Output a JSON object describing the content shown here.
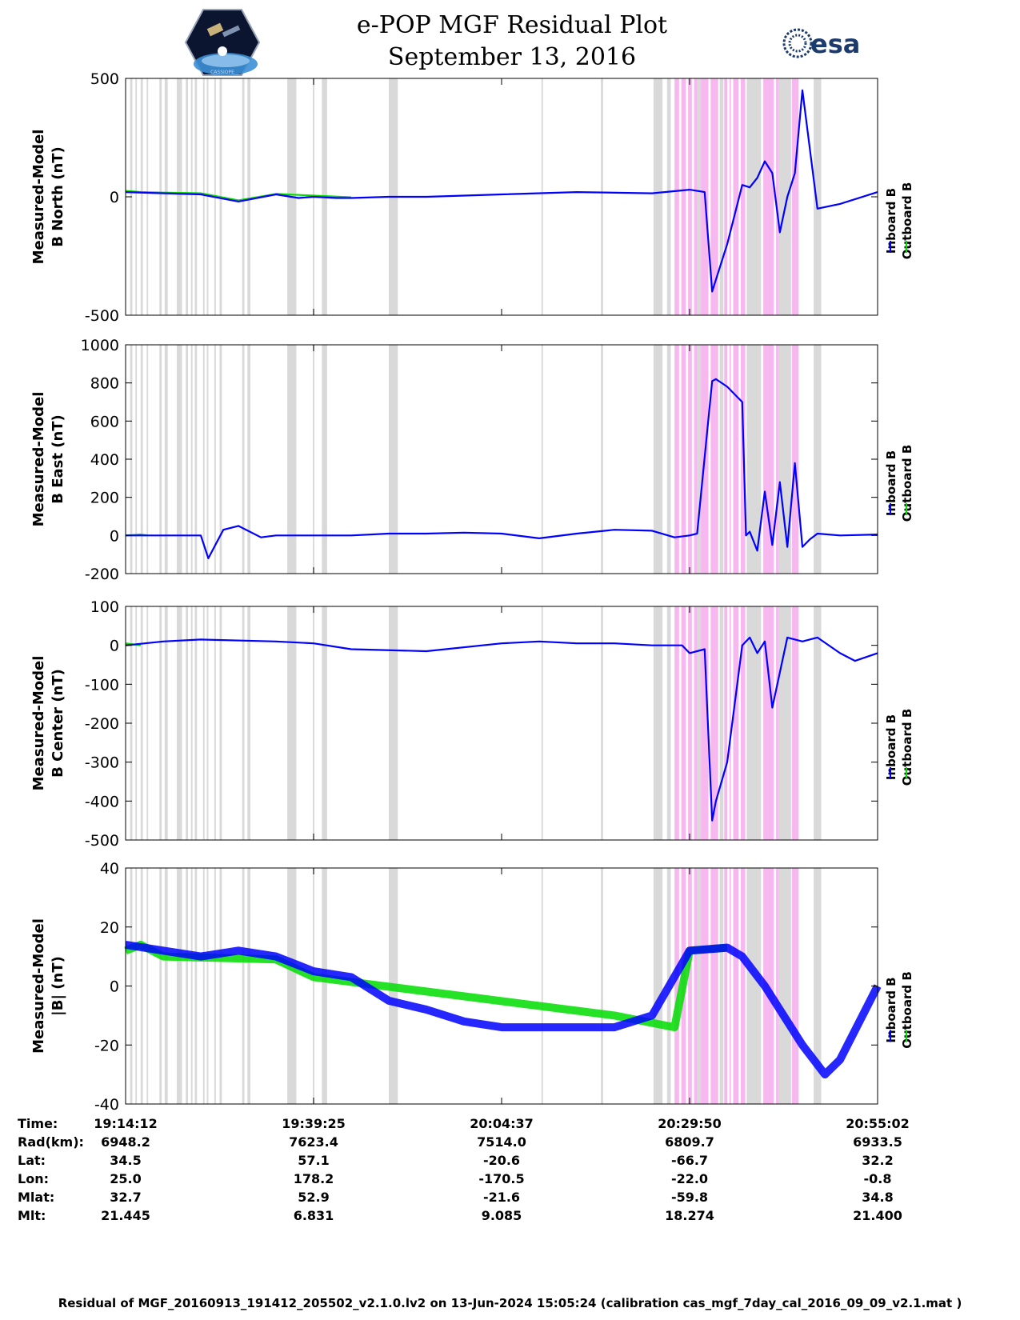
{
  "header": {
    "title": "e-POP MGF Residual Plot",
    "subtitle": "September 13, 2016",
    "logo_left_text": "CASSIOPE",
    "logo_right_text": "esa"
  },
  "colors": {
    "inboard": "#0000ff",
    "outboard": "#00dd00",
    "gray_band": "#d9d9d9",
    "pink_band": "#f7b8f0"
  },
  "legend": {
    "items": [
      "Inboard B",
      "Outboard B"
    ]
  },
  "chart_data": [
    {
      "type": "line",
      "ylabel": [
        "Measured-Model",
        "B North (nT)"
      ],
      "ylim": [
        -500,
        500
      ],
      "yticks": [
        -500,
        0,
        500
      ],
      "series": [
        {
          "name": "Inboard B",
          "x": [
            0,
            5,
            10,
            15,
            20,
            21,
            23,
            25,
            28,
            30,
            35,
            40,
            45,
            50,
            60,
            70,
            75,
            77,
            78,
            78.5,
            79,
            80,
            82,
            83,
            84,
            85,
            86,
            87,
            88,
            89,
            90,
            92,
            95,
            100
          ],
          "y": [
            20,
            15,
            10,
            -20,
            10,
            5,
            -5,
            0,
            -5,
            -5,
            0,
            0,
            5,
            10,
            20,
            15,
            30,
            20,
            -400,
            -350,
            -300,
            -200,
            50,
            40,
            80,
            150,
            100,
            -150,
            0,
            100,
            450,
            -50,
            -30,
            20
          ]
        },
        {
          "name": "Outboard B",
          "x": [
            0,
            2,
            5,
            10,
            15,
            20,
            30
          ],
          "y": [
            25,
            20,
            18,
            15,
            -15,
            12,
            -2
          ]
        }
      ]
    },
    {
      "type": "line",
      "ylabel": [
        "Measured-Model",
        "B East (nT)"
      ],
      "ylim": [
        -200,
        1000
      ],
      "yticks": [
        -200,
        0,
        200,
        400,
        600,
        800,
        1000
      ],
      "series": [
        {
          "name": "Inboard B",
          "x": [
            0,
            5,
            10,
            11,
            13,
            15,
            18,
            20,
            25,
            30,
            35,
            40,
            45,
            50,
            55,
            60,
            65,
            70,
            73,
            75,
            76,
            78,
            78.5,
            80,
            82,
            82.5,
            83,
            84,
            85,
            86,
            87,
            88,
            89,
            90,
            91,
            92,
            95,
            100
          ],
          "y": [
            0,
            0,
            0,
            -120,
            30,
            50,
            -10,
            0,
            0,
            0,
            10,
            10,
            15,
            10,
            -15,
            10,
            30,
            25,
            -10,
            0,
            10,
            810,
            820,
            780,
            700,
            0,
            20,
            -80,
            230,
            -50,
            280,
            -60,
            380,
            -60,
            -20,
            10,
            0,
            5
          ]
        },
        {
          "name": "Outboard B",
          "x": [
            0,
            2,
            3
          ],
          "y": [
            0,
            5,
            0
          ]
        }
      ]
    },
    {
      "type": "line",
      "ylabel": [
        "Measured-Model",
        "B Center (nT)"
      ],
      "ylim": [
        -500,
        100
      ],
      "yticks": [
        -500,
        -400,
        -300,
        -200,
        -100,
        0,
        100
      ],
      "series": [
        {
          "name": "Inboard B",
          "x": [
            0,
            5,
            10,
            20,
            25,
            30,
            40,
            50,
            55,
            60,
            65,
            70,
            74,
            75,
            77,
            78,
            78.5,
            80,
            82,
            82.5,
            83,
            84,
            85,
            86,
            88,
            90,
            92,
            95,
            97,
            100
          ],
          "y": [
            0,
            10,
            15,
            10,
            5,
            -10,
            -15,
            5,
            10,
            5,
            5,
            0,
            0,
            -20,
            -10,
            -450,
            -400,
            -300,
            0,
            10,
            20,
            -20,
            10,
            -160,
            20,
            10,
            20,
            -20,
            -40,
            -20
          ]
        },
        {
          "name": "Outboard B",
          "x": [
            0,
            2
          ],
          "y": [
            5,
            0
          ]
        }
      ]
    },
    {
      "type": "line",
      "ylabel": [
        "Measured-Model",
        "|B| (nT)"
      ],
      "ylim": [
        -40,
        40
      ],
      "yticks": [
        -40,
        -20,
        0,
        20,
        40
      ],
      "series": [
        {
          "name": "Inboard B",
          "x": [
            0,
            5,
            10,
            15,
            20,
            25,
            30,
            35,
            40,
            45,
            50,
            55,
            60,
            65,
            70,
            75,
            80,
            82,
            85,
            87,
            90,
            93,
            95,
            98,
            100
          ],
          "y": [
            14,
            12,
            10,
            12,
            10,
            5,
            3,
            -5,
            -8,
            -12,
            -14,
            -14,
            -14,
            -14,
            -10,
            12,
            13,
            10,
            0,
            -8,
            -20,
            -30,
            -25,
            -10,
            0
          ]
        },
        {
          "name": "Outboard B",
          "x": [
            0,
            2,
            5,
            20,
            25,
            65,
            73,
            75,
            80
          ],
          "y": [
            12,
            14,
            10,
            9,
            3,
            -10,
            -14,
            12,
            13
          ]
        }
      ]
    }
  ],
  "xaxis": {
    "ticks_pct": [
      0,
      25,
      50,
      75,
      100
    ],
    "rows": [
      {
        "label": "Time:",
        "values": [
          "19:14:12",
          "19:39:25",
          "20:04:37",
          "20:29:50",
          "20:55:02"
        ]
      },
      {
        "label": "Rad(km):",
        "values": [
          "6948.2",
          "7623.4",
          "7514.0",
          "6809.7",
          "6933.5"
        ]
      },
      {
        "label": "Lat:",
        "values": [
          "34.5",
          "57.1",
          "-20.6",
          "-66.7",
          "32.2"
        ]
      },
      {
        "label": "Lon:",
        "values": [
          "25.0",
          "178.2",
          "-170.5",
          "-22.0",
          "-0.8"
        ]
      },
      {
        "label": "Mlat:",
        "values": [
          "32.7",
          "52.9",
          "-21.6",
          "-59.8",
          "34.8"
        ]
      },
      {
        "label": "Mlt:",
        "values": [
          "21.445",
          "6.831",
          "9.085",
          "18.274",
          "21.400"
        ]
      }
    ]
  },
  "bands": {
    "gray": [
      [
        0.6,
        0.9
      ],
      [
        1.3,
        1.5
      ],
      [
        2.0,
        2.3
      ],
      [
        2.8,
        3.0
      ],
      [
        4.5,
        4.8
      ],
      [
        5.2,
        5.6
      ],
      [
        6.8,
        7.5
      ],
      [
        8.0,
        8.3
      ],
      [
        8.7,
        8.9
      ],
      [
        9.2,
        9.5
      ],
      [
        10.3,
        10.5
      ],
      [
        10.8,
        11.0
      ],
      [
        11.8,
        12.0
      ],
      [
        12.5,
        12.8
      ],
      [
        15.5,
        15.8
      ],
      [
        16.2,
        16.6
      ],
      [
        21.5,
        22.7
      ],
      [
        24.9,
        25.1
      ],
      [
        26.1,
        26.8
      ],
      [
        35.0,
        36.2
      ],
      [
        55.3,
        55.5
      ],
      [
        63.2,
        63.5
      ],
      [
        70.2,
        71.4
      ],
      [
        72.0,
        72.5
      ],
      [
        76.0,
        76.5
      ],
      [
        79.0,
        79.5
      ],
      [
        82.6,
        84.5
      ],
      [
        86.8,
        88.5
      ],
      [
        91.5,
        92.5
      ]
    ],
    "pink": [
      [
        73.0,
        73.6
      ],
      [
        73.9,
        74.5
      ],
      [
        74.8,
        75.3
      ],
      [
        75.6,
        76.0
      ],
      [
        76.5,
        77.5
      ],
      [
        77.8,
        78.8
      ],
      [
        79.6,
        80.0
      ],
      [
        80.3,
        80.5
      ],
      [
        80.8,
        81.5
      ],
      [
        81.8,
        82.4
      ],
      [
        84.8,
        86.2
      ],
      [
        86.5,
        86.8
      ],
      [
        88.6,
        89.5
      ]
    ]
  },
  "footer": "Residual of MGF_20160913_191412_205502_v2.1.0.lv2 on 13-Jun-2024 15:05:24 (calibration cas_mgf_7day_cal_2016_09_09_v2.1.mat )"
}
